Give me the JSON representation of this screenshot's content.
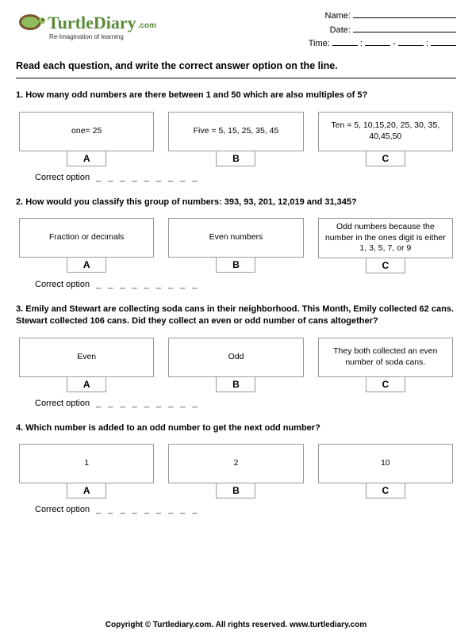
{
  "logo": {
    "main": "TurtleDiary",
    "suffix": ".com",
    "tagline": "Re-Imagination of learning"
  },
  "fields": {
    "name": "Name:",
    "date": "Date:",
    "time": "Time:"
  },
  "instructions": "Read each question, and write the correct answer option on the line.",
  "questions": [
    {
      "num": "1.",
      "text": "How many odd numbers are there between 1 and 50 which are also multiples of 5?",
      "options": [
        {
          "label": "A",
          "text": "one=    25"
        },
        {
          "label": "B",
          "text": "Five = 5, 15, 25, 35, 45"
        },
        {
          "label": "C",
          "text": "Ten = 5, 10,15,20, 25, 30, 35, 40,45,50"
        }
      ]
    },
    {
      "num": "2.",
      "text": "How would you classify this group of numbers: 393, 93, 201, 12,019 and 31,345?",
      "options": [
        {
          "label": "A",
          "text": "Fraction or decimals"
        },
        {
          "label": "B",
          "text": "Even numbers"
        },
        {
          "label": "C",
          "text": "Odd numbers because the number in the ones digit is either 1, 3, 5, 7, or 9"
        }
      ]
    },
    {
      "num": "3.",
      "text": "Emily and Stewart are collecting soda cans in their neighborhood.  This Month, Emily collected 62 cans.  Stewart collected 106 cans.  Did they collect an even or odd number of  cans altogether?",
      "options": [
        {
          "label": "A",
          "text": "Even"
        },
        {
          "label": "B",
          "text": "Odd"
        },
        {
          "label": "C",
          "text": "They both collected an even number of soda cans."
        }
      ]
    },
    {
      "num": "4.",
      "text": "Which number is added to an odd number to get the next odd number?",
      "options": [
        {
          "label": "A",
          "text": "1"
        },
        {
          "label": "B",
          "text": "2"
        },
        {
          "label": "C",
          "text": "10"
        }
      ]
    }
  ],
  "correct_label": "Correct option",
  "dashes": "_ _ _ _ _ _ _ _ _",
  "footer": "Copyright © Turtlediary.com. All rights reserved.   www.turtlediary.com"
}
